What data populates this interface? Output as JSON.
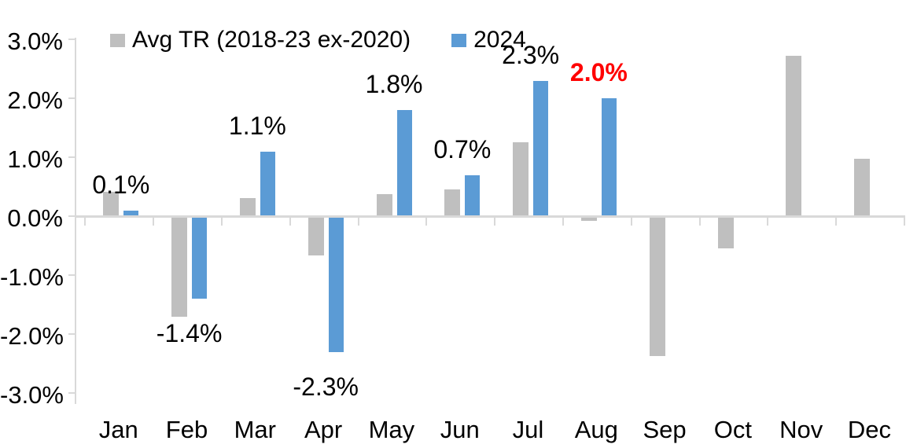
{
  "chart_data": {
    "type": "bar",
    "title": "",
    "xlabel": "",
    "ylabel": "",
    "categories": [
      "Jan",
      "Feb",
      "Mar",
      "Apr",
      "May",
      "Jun",
      "Jul",
      "Aug",
      "Sep",
      "Oct",
      "Nov",
      "Dec"
    ],
    "series": [
      {
        "name": "Avg TR (2018-23 ex-2020)",
        "color": "#BFBFBF",
        "values": [
          0.42,
          -1.71,
          0.31,
          -0.67,
          0.37,
          0.46,
          1.25,
          -0.08,
          -2.37,
          -0.55,
          2.72,
          0.97
        ]
      },
      {
        "name": "2024",
        "color": "#5B9BD5",
        "values": [
          0.1,
          -1.4,
          1.1,
          -2.3,
          1.8,
          0.7,
          2.3,
          2.0,
          null,
          null,
          null,
          null
        ]
      }
    ],
    "data_labels": [
      {
        "category": "Jan",
        "text": "0.1%",
        "color": "#000000",
        "bold": false
      },
      {
        "category": "Feb",
        "text": "-1.4%",
        "color": "#000000",
        "bold": false
      },
      {
        "category": "Mar",
        "text": "1.1%",
        "color": "#000000",
        "bold": false
      },
      {
        "category": "Apr",
        "text": "-2.3%",
        "color": "#000000",
        "bold": false
      },
      {
        "category": "May",
        "text": "1.8%",
        "color": "#000000",
        "bold": false
      },
      {
        "category": "Jun",
        "text": "0.7%",
        "color": "#000000",
        "bold": false
      },
      {
        "category": "Jul",
        "text": "2.3%",
        "color": "#000000",
        "bold": false
      },
      {
        "category": "Aug",
        "text": "2.0%",
        "color": "#FF0000",
        "bold": true
      }
    ],
    "y_axis": {
      "tick_labels": [
        "3.0%",
        "2.0%",
        "1.0%",
        "0.0%",
        "-1.0%",
        "-2.0%",
        "-3.0%"
      ],
      "max": 3.0,
      "min": -3.0,
      "step": 1.0
    },
    "legend": [
      {
        "label": "Avg TR (2018-23 ex-2020)",
        "color": "#BFBFBF"
      },
      {
        "label": "2024",
        "color": "#5B9BD5"
      }
    ],
    "grid": false,
    "legend_position": "top",
    "axis_color": "#D9D9D9",
    "highlight_color": "#FF0000"
  }
}
